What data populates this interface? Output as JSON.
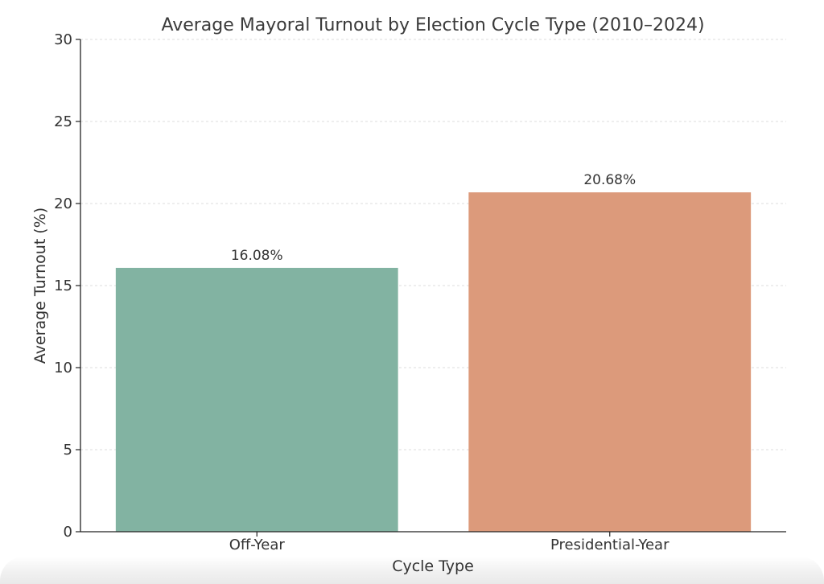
{
  "chart_data": {
    "type": "bar",
    "title": "Average Mayoral Turnout by Election Cycle Type (2010–2024)",
    "xlabel": "Cycle Type",
    "ylabel": "Average Turnout (%)",
    "categories": [
      "Off-Year",
      "Presidential-Year"
    ],
    "values": [
      16.08,
      20.68
    ],
    "value_labels": [
      "16.08%",
      "20.68%"
    ],
    "colors": [
      "#82b3a2",
      "#dc9a7b"
    ],
    "ylim": [
      0,
      30
    ],
    "yticks": [
      0,
      5,
      10,
      15,
      20,
      25,
      30
    ],
    "grid": "horizontal-dashed",
    "legend": "none"
  }
}
